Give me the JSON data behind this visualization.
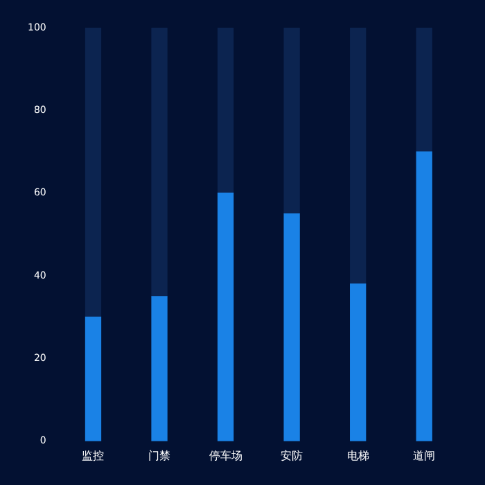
{
  "chart_data": {
    "type": "bar",
    "categories": [
      "监控",
      "门禁",
      "停车场",
      "安防",
      "电梯",
      "道闸"
    ],
    "stacked": true,
    "series": [
      {
        "color": "#1a82e6",
        "values": [
          30,
          35,
          60,
          55,
          38,
          70
        ]
      },
      {
        "color": "#0c2450",
        "values": [
          70,
          65,
          40,
          45,
          62,
          30
        ]
      }
    ],
    "ylim": [
      0,
      100
    ],
    "yticks": [
      0,
      20,
      40,
      60,
      80,
      100
    ],
    "grid": false,
    "legend": false
  }
}
